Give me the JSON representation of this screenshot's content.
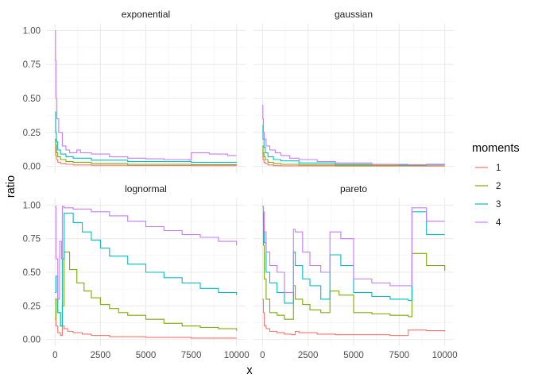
{
  "chart_data": {
    "type": "line",
    "xlabel": "x",
    "ylabel": "ratio",
    "xlim": [
      0,
      10000
    ],
    "ylim": [
      0,
      1
    ],
    "x_ticks": [
      0,
      2500,
      5000,
      7500,
      10000
    ],
    "y_ticks": [
      0,
      0.25,
      0.5,
      0.75,
      1
    ],
    "x_tick_labels": [
      "0",
      "2500",
      "5000",
      "7500",
      "10000"
    ],
    "y_tick_labels": [
      "0.00",
      "0.25",
      "0.50",
      "0.75",
      "1.00"
    ],
    "grid": true,
    "legend": {
      "title": "moments",
      "placement": "right",
      "entries": [
        "1",
        "2",
        "3",
        "4"
      ],
      "colors": [
        "#F8766D",
        "#7CAE00",
        "#00BFC4",
        "#C77CFF"
      ]
    },
    "panels": [
      {
        "facet": "exponential",
        "series": [
          {
            "name": "1",
            "x": [
              0,
              30,
              80,
              150,
              300,
              600,
              1000,
              2000,
              4000,
              7500,
              10000
            ],
            "y": [
              0.15,
              0.08,
              0.05,
              0.03,
              0.02,
              0.015,
              0.01,
              0.008,
              0.006,
              0.005,
              0.004
            ]
          },
          {
            "name": "2",
            "x": [
              0,
              30,
              80,
              150,
              300,
              600,
              1000,
              2000,
              4000,
              7500,
              10000
            ],
            "y": [
              0.2,
              0.16,
              0.1,
              0.07,
              0.05,
              0.035,
              0.03,
              0.02,
              0.015,
              0.012,
              0.01
            ]
          },
          {
            "name": "3",
            "x": [
              0,
              30,
              80,
              150,
              300,
              600,
              1000,
              2000,
              4000,
              7500,
              10000
            ],
            "y": [
              0.4,
              0.25,
              0.18,
              0.12,
              0.09,
              0.07,
              0.06,
              0.045,
              0.035,
              0.03,
              0.028
            ]
          },
          {
            "name": "4",
            "x": [
              0,
              20,
              50,
              100,
              200,
              400,
              600,
              800,
              1200,
              1400,
              2000,
              3000,
              4000,
              5000,
              6000,
              7400,
              7500,
              8500,
              9500,
              10000
            ],
            "y": [
              1.0,
              0.78,
              0.5,
              0.35,
              0.25,
              0.15,
              0.12,
              0.1,
              0.12,
              0.1,
              0.09,
              0.07,
              0.06,
              0.055,
              0.05,
              0.045,
              0.1,
              0.09,
              0.08,
              0.08
            ]
          }
        ]
      },
      {
        "facet": "gaussian",
        "series": [
          {
            "name": "1",
            "x": [
              0,
              30,
              80,
              150,
              300,
              600,
              1000,
              2000,
              4000,
              7500,
              10000
            ],
            "y": [
              0.1,
              0.05,
              0.03,
              0.02,
              0.01,
              0.005,
              0.004,
              0.003,
              0.002,
              0.002,
              0.002
            ]
          },
          {
            "name": "2",
            "x": [
              0,
              30,
              80,
              150,
              300,
              600,
              1000,
              2000,
              4000,
              7500,
              9000,
              10000
            ],
            "y": [
              0.15,
              0.1,
              0.07,
              0.05,
              0.03,
              0.02,
              0.015,
              0.01,
              0.008,
              0.007,
              0.01,
              0.01
            ]
          },
          {
            "name": "3",
            "x": [
              0,
              30,
              80,
              150,
              300,
              600,
              1000,
              2000,
              4000,
              7500,
              9000,
              10000
            ],
            "y": [
              0.3,
              0.2,
              0.14,
              0.1,
              0.07,
              0.05,
              0.04,
              0.025,
              0.015,
              0.01,
              0.015,
              0.015
            ]
          },
          {
            "name": "4",
            "x": [
              0,
              20,
              50,
              100,
              200,
              400,
              700,
              1000,
              1500,
              2000,
              3000,
              4000,
              6000,
              8000,
              10000
            ],
            "y": [
              0.45,
              0.35,
              0.25,
              0.2,
              0.15,
              0.12,
              0.1,
              0.08,
              0.06,
              0.05,
              0.035,
              0.025,
              0.015,
              0.012,
              0.01
            ]
          }
        ]
      },
      {
        "facet": "lognormal",
        "series": [
          {
            "name": "1",
            "x": [
              0,
              50,
              150,
              300,
              400,
              500,
              700,
              1000,
              1500,
              2000,
              3000,
              5000,
              7500,
              10000
            ],
            "y": [
              0.3,
              0.1,
              0.05,
              0.03,
              0.1,
              0.08,
              0.06,
              0.05,
              0.04,
              0.03,
              0.02,
              0.015,
              0.01,
              0.01
            ]
          },
          {
            "name": "2",
            "x": [
              0,
              50,
              150,
              300,
              400,
              500,
              800,
              1200,
              1600,
              2000,
              2500,
              3000,
              3500,
              4000,
              5000,
              6000,
              7000,
              8000,
              9000,
              10000
            ],
            "y": [
              0.15,
              0.3,
              0.2,
              0.1,
              0.25,
              0.65,
              0.52,
              0.42,
              0.36,
              0.31,
              0.26,
              0.23,
              0.2,
              0.18,
              0.15,
              0.12,
              0.1,
              0.09,
              0.08,
              0.065
            ]
          },
          {
            "name": "3",
            "x": [
              0,
              50,
              150,
              300,
              400,
              500,
              1000,
              1500,
              2000,
              2500,
              3000,
              4000,
              5000,
              6000,
              7000,
              8000,
              9000,
              10000
            ],
            "y": [
              0.35,
              0.47,
              0.2,
              0.1,
              0.6,
              0.94,
              0.87,
              0.8,
              0.74,
              0.68,
              0.62,
              0.56,
              0.5,
              0.46,
              0.42,
              0.38,
              0.35,
              0.33
            ]
          },
          {
            "name": "4",
            "x": [
              0,
              50,
              150,
              250,
              350,
              400,
              500,
              1000,
              2000,
              3000,
              4000,
              5000,
              6000,
              7000,
              8000,
              9000,
              10000
            ],
            "y": [
              0.99,
              0.6,
              0.3,
              0.73,
              0.6,
              0.99,
              0.98,
              0.97,
              0.95,
              0.92,
              0.88,
              0.84,
              0.81,
              0.78,
              0.76,
              0.73,
              0.7
            ]
          }
        ]
      },
      {
        "facet": "pareto",
        "series": [
          {
            "name": "1",
            "x": [
              0,
              50,
              100,
              200,
              400,
              800,
              1200,
              1600,
              1800,
              2000,
              3000,
              4000,
              5000,
              7000,
              8000,
              9000,
              10000
            ],
            "y": [
              0.3,
              0.2,
              0.1,
              0.08,
              0.06,
              0.05,
              0.04,
              0.035,
              0.06,
              0.05,
              0.04,
              0.035,
              0.035,
              0.03,
              0.07,
              0.065,
              0.06
            ]
          },
          {
            "name": "2",
            "x": [
              0,
              50,
              100,
              200,
              400,
              800,
              1200,
              1700,
              1800,
              2200,
              2600,
              3200,
              3700,
              4200,
              5000,
              6000,
              7000,
              8000,
              8200,
              9000,
              10000
            ],
            "y": [
              0.99,
              0.7,
              0.45,
              0.3,
              0.2,
              0.18,
              0.15,
              0.4,
              0.3,
              0.26,
              0.22,
              0.2,
              0.36,
              0.33,
              0.2,
              0.19,
              0.18,
              0.17,
              0.64,
              0.55,
              0.51
            ]
          },
          {
            "name": "3",
            "x": [
              0,
              50,
              100,
              200,
              400,
              800,
              1200,
              1700,
              1800,
              2200,
              2600,
              3200,
              3700,
              4300,
              5000,
              6000,
              7000,
              8000,
              8200,
              9000,
              10000
            ],
            "y": [
              0.99,
              0.85,
              0.72,
              0.5,
              0.42,
              0.35,
              0.27,
              0.65,
              0.55,
              0.45,
              0.4,
              0.3,
              0.63,
              0.55,
              0.35,
              0.32,
              0.3,
              0.29,
              0.95,
              0.78,
              0.78
            ]
          },
          {
            "name": "4",
            "x": [
              0,
              50,
              100,
              200,
              400,
              800,
              1200,
              1700,
              1800,
              2200,
              2600,
              3200,
              3700,
              4300,
              5000,
              6000,
              7000,
              8000,
              8200,
              9000,
              10000
            ],
            "y": [
              0.99,
              0.95,
              0.8,
              0.65,
              0.55,
              0.5,
              0.35,
              0.82,
              0.8,
              0.65,
              0.55,
              0.5,
              0.8,
              0.75,
              0.45,
              0.42,
              0.4,
              0.4,
              0.98,
              0.88,
              0.88
            ]
          }
        ]
      }
    ]
  }
}
